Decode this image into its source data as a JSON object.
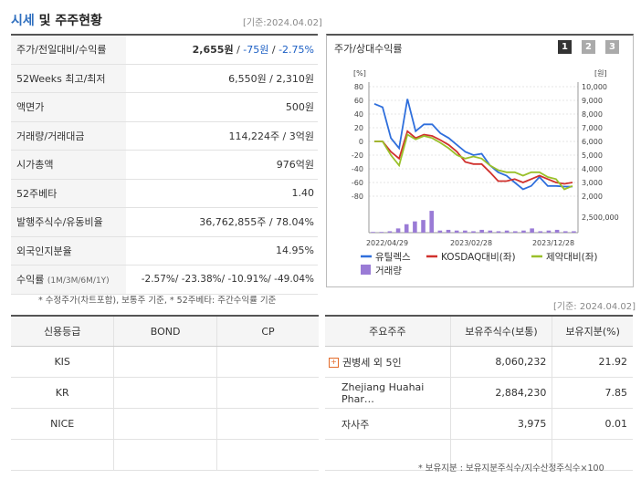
{
  "header": {
    "title_accent": "시세",
    "title_rest": " 및 주주현황",
    "date_top": "[기준:2024.04.02]"
  },
  "market": {
    "rows": [
      {
        "label": "주가/전일대비/수익률",
        "price": "2,655원",
        "sep1": " / ",
        "change": "-75원",
        "sep2": " / ",
        "rate": "-2.75%"
      },
      {
        "label": "52Weeks 최고/최저",
        "value": "6,550원 / 2,310원"
      },
      {
        "label": "액면가",
        "value": "500원"
      },
      {
        "label": "거래량/거래대금",
        "value": "114,224주 / 3억원"
      },
      {
        "label": "시가총액",
        "value": "976억원"
      },
      {
        "label": "52주베타",
        "value": "1.40"
      },
      {
        "label": "발행주식수/유동비율",
        "value": "36,762,855주 / 78.04%"
      },
      {
        "label": "외국인지분율",
        "value": "14.95%"
      },
      {
        "label": "수익률",
        "sub": "(1M/3M/6M/1Y)",
        "value": "-2.57%/ -23.38%/ -10.91%/ -49.04%"
      }
    ],
    "note": "* 수정주가(차트포함), 보통주 기준, * 52주베타: 주간수익률 기준"
  },
  "chart_panel": {
    "title": "주가/상대수익률",
    "tabs": [
      "1",
      "2",
      "3"
    ],
    "active_tab": "1",
    "date_below": "[기준: 2024.04.02]"
  },
  "chart_data": {
    "type": "line",
    "left_unit": "[%]",
    "right_unit": "[원]",
    "left_ticks": [
      "80",
      "60",
      "40",
      "20",
      "0",
      "-20",
      "-40",
      "-60",
      "-80"
    ],
    "ylim_left": [
      -80,
      80
    ],
    "right_ticks": [
      "10,000",
      "9,000",
      "8,000",
      "7,000",
      "6,000",
      "5,000",
      "4,000",
      "3,000",
      "2,000"
    ],
    "volume_tick": "2,500,000",
    "x_ticks": [
      "2022/04/29",
      "2023/02/28",
      "2023/12/28"
    ],
    "series": [
      {
        "name": "유틸렉스",
        "color": "#2f6fdc",
        "values": [
          55,
          50,
          5,
          -10,
          62,
          15,
          25,
          25,
          12,
          5,
          -5,
          -15,
          -20,
          -18,
          -35,
          -45,
          -50,
          -60,
          -70,
          -65,
          -52,
          -65,
          -65,
          -66,
          -66
        ]
      },
      {
        "name": "KOSDAQ대비(좌)",
        "color": "#d0312d",
        "values": [
          0,
          0,
          -15,
          -25,
          15,
          5,
          10,
          8,
          2,
          -5,
          -15,
          -30,
          -33,
          -33,
          -45,
          -58,
          -58,
          -55,
          -60,
          -55,
          -50,
          -55,
          -60,
          -62,
          -60
        ]
      },
      {
        "name": "제약대비(좌)",
        "color": "#9ac02a",
        "values": [
          0,
          0,
          -20,
          -35,
          10,
          3,
          8,
          5,
          -2,
          -10,
          -20,
          -25,
          -22,
          -25,
          -35,
          -42,
          -45,
          -45,
          -50,
          -45,
          -45,
          -52,
          -55,
          -70,
          -65
        ]
      }
    ],
    "volume": {
      "name": "거래량",
      "color": "#9a7bd6",
      "values": [
        0.1,
        0.1,
        0.2,
        0.6,
        1.2,
        1.6,
        1.8,
        3.1,
        0.3,
        0.4,
        0.3,
        0.3,
        0.2,
        0.4,
        0.3,
        0.2,
        0.3,
        0.2,
        0.3,
        0.6,
        0.2,
        0.3,
        0.4,
        0.2,
        0.2
      ],
      "max": 3.5
    }
  },
  "credit": {
    "headers": [
      "신용등급",
      "BOND",
      "CP"
    ],
    "rows": [
      [
        "KIS",
        "",
        ""
      ],
      [
        "KR",
        "",
        ""
      ],
      [
        "NICE",
        "",
        ""
      ],
      [
        "",
        "",
        ""
      ]
    ]
  },
  "holders": {
    "headers": [
      "주요주주",
      "보유주식수(보통)",
      "보유지분(%)"
    ],
    "rows": [
      {
        "name": "권병세 외 5인",
        "shares": "8,060,232",
        "pct": "21.92",
        "expandable": true
      },
      {
        "name": "Zhejiang Huahai Phar…",
        "shares": "2,884,230",
        "pct": "7.85"
      },
      {
        "name": "자사주",
        "shares": "3,975",
        "pct": "0.01"
      }
    ],
    "note": "* 보유지분 : 보유지분주식수/지수산정주식수×100"
  }
}
